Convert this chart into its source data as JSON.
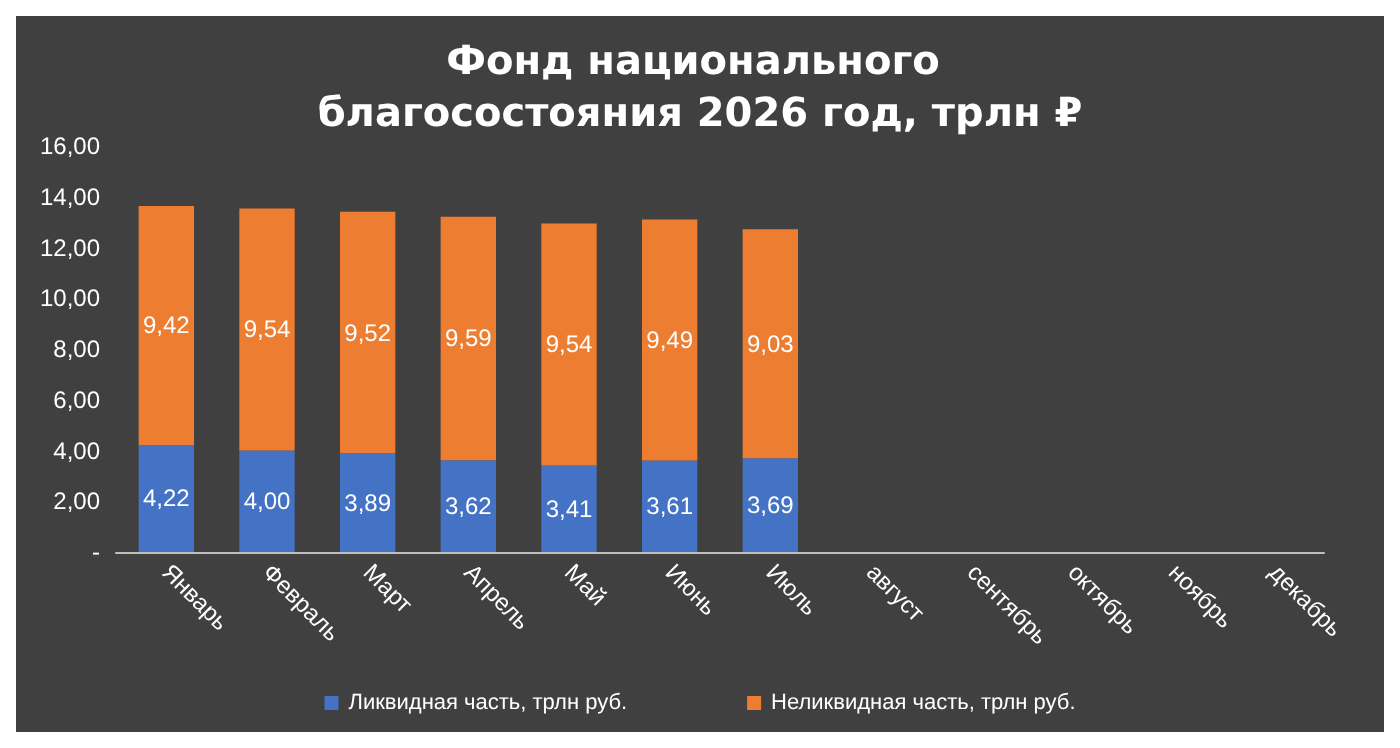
{
  "chart_data": {
    "type": "bar",
    "title": "Фонд национального благосостояния 2026 год, трлн ₽",
    "stacked": true,
    "categories": [
      "Январь",
      "Февраль",
      "Март",
      "Апрель",
      "Май",
      "Июнь",
      "Июль",
      "август",
      "сентябрь",
      "октябрь",
      "ноябрь",
      "декабрь"
    ],
    "series": [
      {
        "name": "Ликвидная часть, трлн руб.",
        "color": "#4472c4",
        "values": [
          4.22,
          4.0,
          3.89,
          3.62,
          3.41,
          3.61,
          3.69,
          null,
          null,
          null,
          null,
          null
        ],
        "value_labels": [
          "4,22",
          "4,00",
          "3,89",
          "3,62",
          "3,41",
          "3,61",
          "3,69",
          null,
          null,
          null,
          null,
          null
        ]
      },
      {
        "name": "Неликвидная часть, трлн руб.",
        "color": "#ed7d31",
        "values": [
          9.42,
          9.54,
          9.52,
          9.59,
          9.54,
          9.49,
          9.03,
          null,
          null,
          null,
          null,
          null
        ],
        "value_labels": [
          "9,42",
          "9,54",
          "9,52",
          "9,59",
          "9,54",
          "9,49",
          "9,03",
          null,
          null,
          null,
          null,
          null
        ]
      }
    ],
    "ylim": [
      0,
      16
    ],
    "yticks": [
      {
        "value": 0,
        "label": "-"
      },
      {
        "value": 2,
        "label": "2,00"
      },
      {
        "value": 4,
        "label": "4,00"
      },
      {
        "value": 6,
        "label": "6,00"
      },
      {
        "value": 8,
        "label": "8,00"
      },
      {
        "value": 10,
        "label": "10,00"
      },
      {
        "value": 12,
        "label": "12,00"
      },
      {
        "value": 14,
        "label": "14,00"
      },
      {
        "value": 16,
        "label": "16,00"
      }
    ],
    "legend": "bottom",
    "grid": false
  }
}
